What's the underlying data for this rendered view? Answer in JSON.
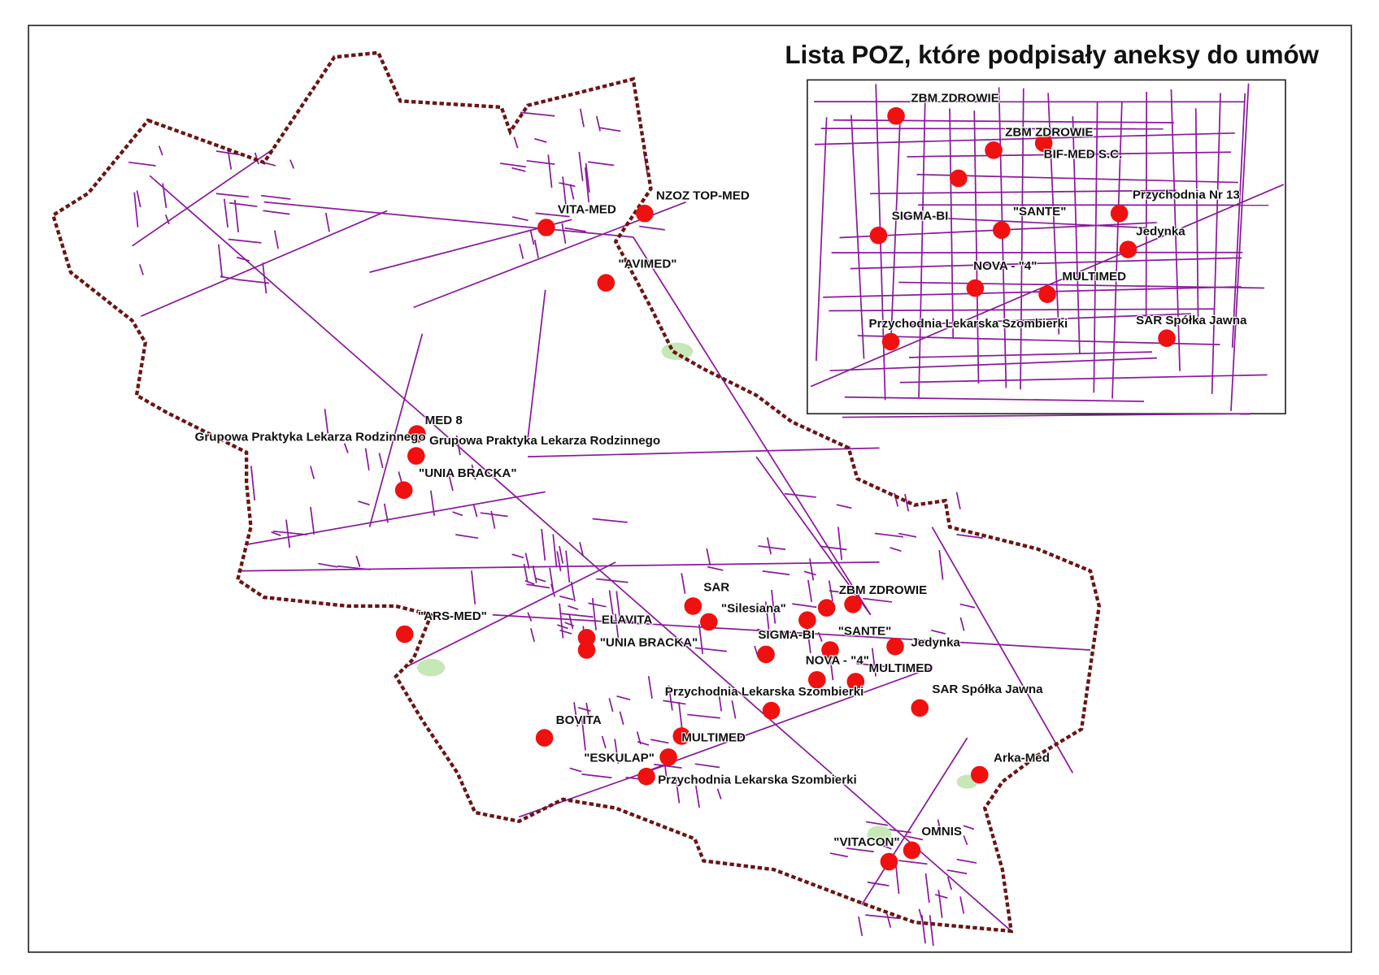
{
  "title": "Lista POZ, które  podpisały aneksy do umów",
  "main_map": {
    "labels": [
      "NZOZ TOP-MED",
      "VITA-MED",
      "\"AVIMED\"",
      "MED 8",
      "Grupowa Praktyka Lekarza Rodzinnego",
      "Grupowa Praktyka Lekarza Rodzinnego",
      "\"UNIA BRACKA\"",
      "\"ARS-MED\"",
      "SAR",
      "\"Silesiana\"",
      "ZBM ZDROWIE",
      "ELAVITA",
      "\"UNIA BRACKA\"",
      "SIGMA-BI",
      "\"SANTE\"",
      "Jedynka",
      "NOVA - \"4\"",
      "MULTIMED",
      "Przychodnia Lekarska Szombierki",
      "SAR Spółka Jawna",
      "BOVITA",
      "MULTIMED",
      "\"ESKULAP\"",
      "Przychodnia Lekarska Szombierki",
      "Arka-Med",
      "\"VITACON\"",
      "OMNIS"
    ]
  },
  "inset": {
    "labels": [
      "ZBM ZDROWIE",
      "ZBM ZDROWIE",
      "BIF-MED S.C.",
      "Przychodnia Nr 13",
      "\"SANTE\"",
      "SIGMA-BI",
      "Jedynka",
      "NOVA - \"4\"",
      "MULTIMED",
      "Przychodnia Lekarska Szombierki",
      "SAR Spółka Jawna"
    ]
  }
}
